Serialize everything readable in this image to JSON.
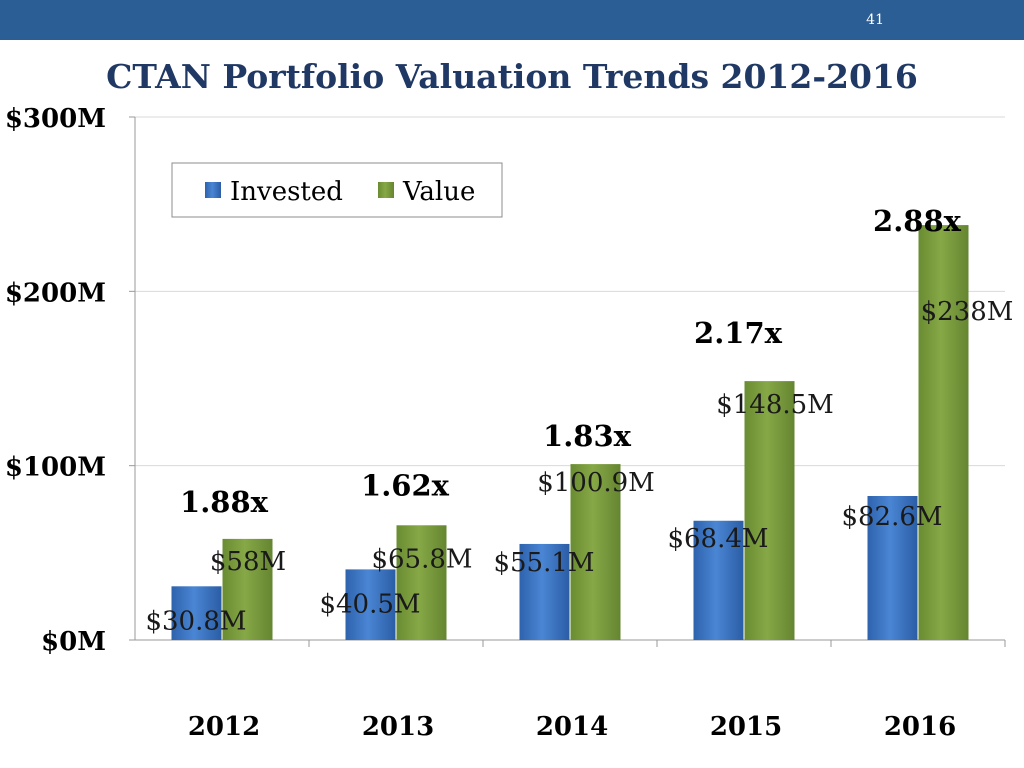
{
  "slide": {
    "page_number": "41"
  },
  "colors": {
    "header": "#2c5e96",
    "invested": "#3b74c2",
    "value": "#77993a",
    "grid": "#d9d9d9",
    "axis": "#999999"
  },
  "chart_data": {
    "type": "bar",
    "title": "CTAN Portfolio Valuation Trends 2012-2016",
    "categories": [
      "2012",
      "2013",
      "2014",
      "2015",
      "2016"
    ],
    "series": [
      {
        "name": "Invested",
        "values": [
          30.8,
          40.5,
          55.1,
          68.4,
          82.6
        ],
        "labels": [
          "$30.8M",
          "$40.5M",
          "$55.1M",
          "$68.4M",
          "$82.6M"
        ]
      },
      {
        "name": "Value",
        "values": [
          58,
          65.8,
          100.9,
          148.5,
          238
        ],
        "labels": [
          "$58M",
          "$65.8M",
          "$100.9M",
          "$148.5M",
          "$238M"
        ]
      }
    ],
    "multiples": [
      "1.88x",
      "1.62x",
      "1.83x",
      "2.17x",
      "2.88x"
    ],
    "yticks": [
      {
        "value": 0,
        "label": "$0M"
      },
      {
        "value": 100,
        "label": "$100M"
      },
      {
        "value": 200,
        "label": "$200M"
      },
      {
        "value": 300,
        "label": "$300M"
      }
    ],
    "ylim": [
      0,
      300
    ],
    "xlabel": "",
    "ylabel": "",
    "legend": {
      "position": "top-left",
      "entries": [
        "Invested",
        "Value"
      ]
    }
  }
}
